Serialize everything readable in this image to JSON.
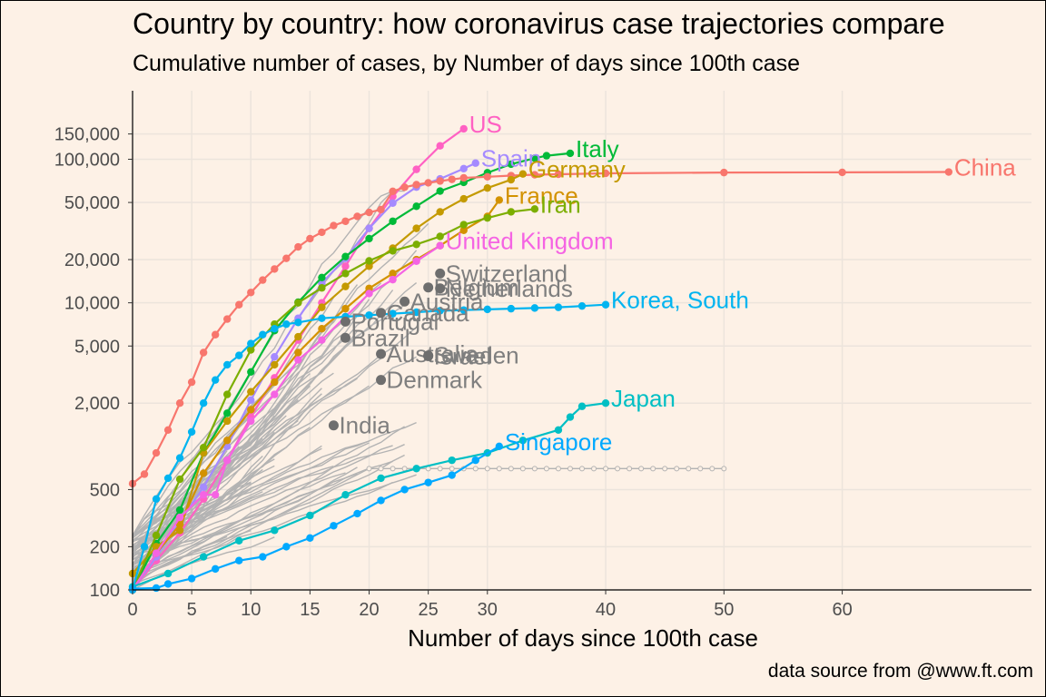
{
  "title": "Country by country: how coronavirus case trajectories compare",
  "subtitle": "Cumulative number of cases, by Number of days since 100th case",
  "caption": "data source from @www.ft.com",
  "chart_data": {
    "type": "line",
    "title": "Country by country: how coronavirus case trajectories compare",
    "subtitle": "Cumulative number of cases, by Number of days since 100th case",
    "xlabel": "Number of days since 100th case",
    "ylabel": "",
    "y_scale": "log",
    "xlim": [
      0,
      76
    ],
    "ylim": [
      100,
      300000
    ],
    "x_ticks": [
      0,
      5,
      10,
      15,
      20,
      25,
      30,
      40,
      50,
      60
    ],
    "y_ticks": [
      100,
      200,
      500,
      2000,
      5000,
      10000,
      20000,
      50000,
      100000,
      150000
    ],
    "y_tick_labels": [
      "100",
      "200",
      "500",
      "2,000",
      "5,000",
      "10,000",
      "20,000",
      "50,000",
      "100,000",
      "150,000"
    ],
    "grid": true,
    "legend": "none",
    "highlighted_series": [
      {
        "name": "US",
        "color": "#ff61c3",
        "points": [
          [
            0,
            100
          ],
          [
            2,
            160
          ],
          [
            4,
            250
          ],
          [
            6,
            430
          ],
          [
            8,
            800
          ],
          [
            10,
            1600
          ],
          [
            12,
            3000
          ],
          [
            14,
            5500
          ],
          [
            16,
            10000
          ],
          [
            18,
            18000
          ],
          [
            20,
            33000
          ],
          [
            22,
            55000
          ],
          [
            24,
            85000
          ],
          [
            26,
            124000
          ],
          [
            28,
            163000
          ]
        ]
      },
      {
        "name": "Spain",
        "color": "#a58aff",
        "points": [
          [
            0,
            100
          ],
          [
            2,
            170
          ],
          [
            4,
            300
          ],
          [
            6,
            520
          ],
          [
            8,
            1000
          ],
          [
            10,
            2100
          ],
          [
            12,
            4200
          ],
          [
            14,
            7800
          ],
          [
            16,
            13700
          ],
          [
            18,
            20400
          ],
          [
            20,
            33000
          ],
          [
            22,
            49500
          ],
          [
            24,
            64000
          ],
          [
            26,
            73000
          ],
          [
            28,
            86000
          ],
          [
            29,
            94000
          ]
        ]
      },
      {
        "name": "Italy",
        "color": "#00ba38",
        "points": [
          [
            0,
            100
          ],
          [
            2,
            210
          ],
          [
            4,
            360
          ],
          [
            6,
            900
          ],
          [
            8,
            1700
          ],
          [
            10,
            3300
          ],
          [
            12,
            6400
          ],
          [
            14,
            10100
          ],
          [
            16,
            15000
          ],
          [
            18,
            21000
          ],
          [
            20,
            28000
          ],
          [
            22,
            37000
          ],
          [
            24,
            47000
          ],
          [
            26,
            60000
          ],
          [
            28,
            69000
          ],
          [
            30,
            80500
          ],
          [
            32,
            92400
          ],
          [
            34,
            101700
          ],
          [
            35,
            105800
          ],
          [
            37,
            110000
          ]
        ]
      },
      {
        "name": "China",
        "color": "#f8766d",
        "points": [
          [
            0,
            550
          ],
          [
            1,
            640
          ],
          [
            2,
            900
          ],
          [
            3,
            1300
          ],
          [
            4,
            2000
          ],
          [
            5,
            2800
          ],
          [
            6,
            4500
          ],
          [
            7,
            6000
          ],
          [
            8,
            7700
          ],
          [
            9,
            9700
          ],
          [
            10,
            11800
          ],
          [
            11,
            14400
          ],
          [
            12,
            17200
          ],
          [
            13,
            20400
          ],
          [
            14,
            24500
          ],
          [
            15,
            28000
          ],
          [
            16,
            31000
          ],
          [
            17,
            34500
          ],
          [
            18,
            37000
          ],
          [
            19,
            40000
          ],
          [
            20,
            42600
          ],
          [
            21,
            44600
          ],
          [
            22,
            59800
          ],
          [
            23,
            63800
          ],
          [
            24,
            66500
          ],
          [
            25,
            68500
          ],
          [
            26,
            70500
          ],
          [
            27,
            72400
          ],
          [
            28,
            74200
          ],
          [
            30,
            75500
          ],
          [
            32,
            76900
          ],
          [
            34,
            78000
          ],
          [
            36,
            78600
          ],
          [
            40,
            79800
          ],
          [
            50,
            80800
          ],
          [
            60,
            81000
          ],
          [
            69,
            81500
          ]
        ]
      },
      {
        "name": "Germany",
        "color": "#c49a00",
        "points": [
          [
            0,
            130
          ],
          [
            2,
            200
          ],
          [
            4,
            260
          ],
          [
            6,
            900
          ],
          [
            8,
            1500
          ],
          [
            10,
            2400
          ],
          [
            12,
            3700
          ],
          [
            14,
            5800
          ],
          [
            16,
            9300
          ],
          [
            18,
            13000
          ],
          [
            20,
            18000
          ],
          [
            22,
            24000
          ],
          [
            24,
            33000
          ],
          [
            26,
            43000
          ],
          [
            28,
            53000
          ],
          [
            30,
            63000
          ],
          [
            32,
            72000
          ],
          [
            33,
            79000
          ]
        ]
      },
      {
        "name": "France",
        "color": "#d39200",
        "points": [
          [
            0,
            100
          ],
          [
            2,
            180
          ],
          [
            4,
            285
          ],
          [
            6,
            650
          ],
          [
            8,
            1100
          ],
          [
            10,
            1800
          ],
          [
            12,
            2800
          ],
          [
            14,
            4500
          ],
          [
            16,
            6600
          ],
          [
            18,
            9100
          ],
          [
            20,
            12600
          ],
          [
            22,
            16000
          ],
          [
            24,
            20000
          ],
          [
            26,
            25000
          ],
          [
            28,
            32000
          ],
          [
            30,
            40000
          ],
          [
            31,
            52000
          ]
        ]
      },
      {
        "name": "Iran",
        "color": "#7cae00",
        "points": [
          [
            0,
            100
          ],
          [
            2,
            240
          ],
          [
            4,
            590
          ],
          [
            6,
            980
          ],
          [
            8,
            2300
          ],
          [
            10,
            4700
          ],
          [
            12,
            7100
          ],
          [
            14,
            10000
          ],
          [
            16,
            12700
          ],
          [
            18,
            16000
          ],
          [
            20,
            19600
          ],
          [
            22,
            23000
          ],
          [
            24,
            25500
          ],
          [
            26,
            29000
          ],
          [
            28,
            35000
          ],
          [
            30,
            39000
          ],
          [
            32,
            43000
          ],
          [
            34,
            45000
          ]
        ]
      },
      {
        "name": "United Kingdom",
        "color": "#f564e3",
        "points": [
          [
            0,
            100
          ],
          [
            2,
            180
          ],
          [
            4,
            320
          ],
          [
            6,
            460
          ],
          [
            7,
            460
          ],
          [
            8,
            800
          ],
          [
            10,
            1500
          ],
          [
            12,
            2300
          ],
          [
            14,
            4000
          ],
          [
            16,
            5500
          ],
          [
            18,
            8000
          ],
          [
            20,
            11600
          ],
          [
            22,
            14500
          ],
          [
            24,
            19500
          ],
          [
            26,
            25000
          ]
        ]
      },
      {
        "name": "Korea, South",
        "color": "#00b4f0",
        "points": [
          [
            0,
            100
          ],
          [
            1,
            200
          ],
          [
            2,
            430
          ],
          [
            3,
            600
          ],
          [
            4,
            830
          ],
          [
            5,
            1260
          ],
          [
            6,
            2000
          ],
          [
            7,
            2900
          ],
          [
            8,
            3700
          ],
          [
            9,
            4300
          ],
          [
            10,
            5200
          ],
          [
            11,
            6000
          ],
          [
            12,
            6600
          ],
          [
            13,
            7100
          ],
          [
            14,
            7300
          ],
          [
            16,
            7800
          ],
          [
            18,
            8000
          ],
          [
            20,
            8200
          ],
          [
            22,
            8400
          ],
          [
            24,
            8600
          ],
          [
            26,
            8800
          ],
          [
            28,
            8900
          ],
          [
            30,
            9000
          ],
          [
            32,
            9100
          ],
          [
            34,
            9200
          ],
          [
            36,
            9300
          ],
          [
            38,
            9500
          ],
          [
            40,
            9700
          ]
        ]
      },
      {
        "name": "Japan",
        "color": "#00bfc4",
        "points": [
          [
            0,
            105
          ],
          [
            3,
            130
          ],
          [
            6,
            170
          ],
          [
            9,
            220
          ],
          [
            12,
            260
          ],
          [
            15,
            330
          ],
          [
            18,
            460
          ],
          [
            21,
            600
          ],
          [
            24,
            700
          ],
          [
            27,
            800
          ],
          [
            30,
            900
          ],
          [
            33,
            1100
          ],
          [
            36,
            1300
          ],
          [
            37,
            1600
          ],
          [
            38,
            1900
          ],
          [
            40,
            2000
          ]
        ]
      },
      {
        "name": "Singapore",
        "color": "#00a9ff",
        "points": [
          [
            0,
            102
          ],
          [
            2,
            103
          ],
          [
            3,
            110
          ],
          [
            5,
            120
          ],
          [
            7,
            140
          ],
          [
            9,
            160
          ],
          [
            11,
            170
          ],
          [
            13,
            200
          ],
          [
            15,
            230
          ],
          [
            17,
            280
          ],
          [
            19,
            340
          ],
          [
            21,
            420
          ],
          [
            23,
            500
          ],
          [
            25,
            560
          ],
          [
            27,
            630
          ],
          [
            29,
            800
          ],
          [
            31,
            1000
          ]
        ]
      }
    ],
    "labeled_gray_endpoints": [
      {
        "name": "Switzerland",
        "x": 26,
        "y": 16000
      },
      {
        "name": "Belgium",
        "x": 25,
        "y": 12800
      },
      {
        "name": "Netherlands",
        "x": 26,
        "y": 12600
      },
      {
        "name": "Austria",
        "x": 23,
        "y": 10200
      },
      {
        "name": "Canada",
        "x": 21,
        "y": 8500
      },
      {
        "name": "Portugal",
        "x": 18,
        "y": 7400
      },
      {
        "name": "Brazil",
        "x": 18,
        "y": 5700
      },
      {
        "name": "Australia",
        "x": 21,
        "y": 4400
      },
      {
        "name": "Israel",
        "x": 25,
        "y": 4250
      },
      {
        "name": "Sweden",
        "x": 25,
        "y": 4300
      },
      {
        "name": "Denmark",
        "x": 21,
        "y": 2900
      },
      {
        "name": "India",
        "x": 17,
        "y": 1400
      }
    ],
    "gray_series_color": "#b3b3b3"
  }
}
